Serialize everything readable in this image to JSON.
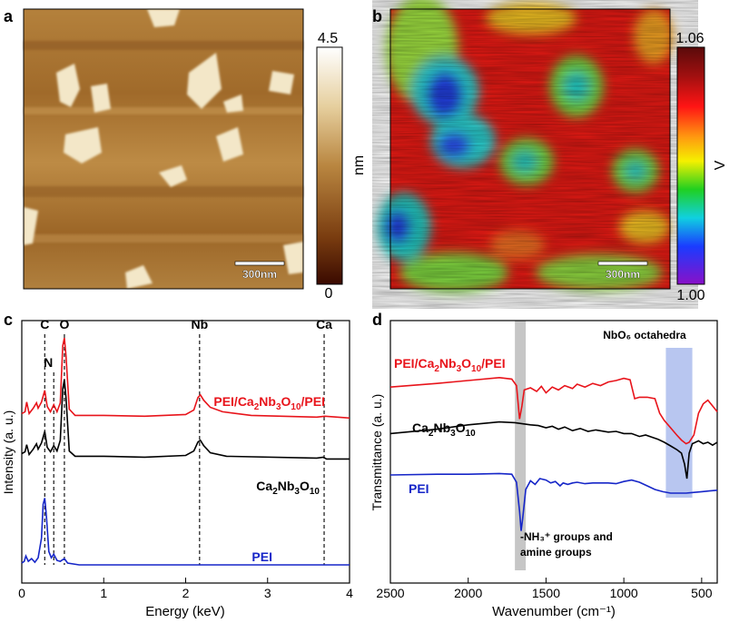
{
  "panels": {
    "a": {
      "letter": "a",
      "scalebar": "300nm",
      "colorbar_max": "4.5",
      "colorbar_min": "0",
      "colorbar_unit": "nm"
    },
    "b": {
      "letter": "b",
      "scalebar": "300nm",
      "colorbar_max": "1.06",
      "colorbar_min": "1.00",
      "colorbar_unit": "V"
    },
    "c": {
      "letter": "c"
    },
    "d": {
      "letter": "d"
    }
  },
  "chart_data": [
    {
      "type": "line",
      "panel": "c",
      "xlabel": "Energy (keV)",
      "ylabel": "Intensity (a. u.)",
      "xlim": [
        0,
        4
      ],
      "x_ticks": [
        "0",
        "1",
        "2",
        "3",
        "4"
      ],
      "element_markers": [
        {
          "label": "C",
          "x": 0.28
        },
        {
          "label": "N",
          "x": 0.39
        },
        {
          "label": "O",
          "x": 0.52
        },
        {
          "label": "Nb",
          "x": 2.17
        },
        {
          "label": "Ca",
          "x": 3.69
        }
      ],
      "series": [
        {
          "name": "PEI/Ca2Nb3O10/PEI",
          "color": "#e8141b",
          "points": [
            [
              0,
              0.7
            ],
            [
              0.04,
              0.72
            ],
            [
              0.06,
              0.83
            ],
            [
              0.09,
              0.7
            ],
            [
              0.14,
              0.76
            ],
            [
              0.18,
              0.82
            ],
            [
              0.2,
              0.76
            ],
            [
              0.24,
              0.83
            ],
            [
              0.28,
              0.96
            ],
            [
              0.31,
              0.78
            ],
            [
              0.35,
              0.72
            ],
            [
              0.39,
              0.8
            ],
            [
              0.43,
              0.72
            ],
            [
              0.47,
              0.82
            ],
            [
              0.5,
              1.46
            ],
            [
              0.52,
              1.55
            ],
            [
              0.54,
              1.35
            ],
            [
              0.58,
              0.75
            ],
            [
              0.65,
              0.68
            ],
            [
              1.0,
              0.68
            ],
            [
              1.5,
              0.67
            ],
            [
              2.0,
              0.69
            ],
            [
              2.1,
              0.74
            ],
            [
              2.15,
              0.88
            ],
            [
              2.18,
              0.91
            ],
            [
              2.22,
              0.85
            ],
            [
              2.3,
              0.77
            ],
            [
              2.45,
              0.72
            ],
            [
              2.8,
              0.68
            ],
            [
              3.6,
              0.66
            ],
            [
              3.7,
              0.67
            ],
            [
              4.0,
              0.65
            ]
          ]
        },
        {
          "name": "Ca2Nb3O10",
          "color": "#000000",
          "points": [
            [
              0,
              0.25
            ],
            [
              0.04,
              0.27
            ],
            [
              0.06,
              0.35
            ],
            [
              0.09,
              0.24
            ],
            [
              0.14,
              0.3
            ],
            [
              0.18,
              0.36
            ],
            [
              0.2,
              0.3
            ],
            [
              0.24,
              0.37
            ],
            [
              0.28,
              0.5
            ],
            [
              0.31,
              0.32
            ],
            [
              0.35,
              0.27
            ],
            [
              0.39,
              0.34
            ],
            [
              0.43,
              0.28
            ],
            [
              0.47,
              0.4
            ],
            [
              0.5,
              0.98
            ],
            [
              0.52,
              1.08
            ],
            [
              0.54,
              0.88
            ],
            [
              0.58,
              0.28
            ],
            [
              0.65,
              0.22
            ],
            [
              1.0,
              0.22
            ],
            [
              1.5,
              0.21
            ],
            [
              2.0,
              0.23
            ],
            [
              2.1,
              0.28
            ],
            [
              2.15,
              0.38
            ],
            [
              2.18,
              0.4
            ],
            [
              2.22,
              0.34
            ],
            [
              2.3,
              0.26
            ],
            [
              2.5,
              0.22
            ],
            [
              3.6,
              0.2
            ],
            [
              3.68,
              0.21
            ],
            [
              3.72,
              0.19
            ],
            [
              4.0,
              0.19
            ]
          ]
        },
        {
          "name": "PEI",
          "color": "#1626c8",
          "points": [
            [
              0,
              -0.98
            ],
            [
              0.03,
              -0.96
            ],
            [
              0.05,
              -0.9
            ],
            [
              0.08,
              -0.96
            ],
            [
              0.12,
              -0.93
            ],
            [
              0.16,
              -0.97
            ],
            [
              0.2,
              -0.92
            ],
            [
              0.24,
              -0.7
            ],
            [
              0.26,
              -0.32
            ],
            [
              0.28,
              -0.25
            ],
            [
              0.3,
              -0.45
            ],
            [
              0.33,
              -0.85
            ],
            [
              0.36,
              -0.92
            ],
            [
              0.39,
              -0.88
            ],
            [
              0.43,
              -0.95
            ],
            [
              0.47,
              -0.96
            ],
            [
              0.52,
              -0.93
            ],
            [
              0.56,
              -0.98
            ],
            [
              0.7,
              -1.0
            ],
            [
              1.0,
              -1.0
            ],
            [
              2.0,
              -1.0
            ],
            [
              3.0,
              -1.0
            ],
            [
              4.0,
              -1.0
            ]
          ]
        }
      ]
    },
    {
      "type": "line",
      "panel": "d",
      "xlabel": "Wavenumber (cm⁻¹)",
      "ylabel": "Transmittance (a. u.)",
      "xlim": [
        2500,
        400
      ],
      "x_ticks": [
        "2500",
        "2000",
        "1500",
        "1000",
        "500"
      ],
      "highlight_bands": [
        {
          "from": 1700,
          "to": 1630,
          "color": "#c6c6c6"
        },
        {
          "from": 730,
          "to": 560,
          "color": "#b8c6f0"
        }
      ],
      "annotations": {
        "nbo6": "NbO₆ octahedra",
        "nh3_line1": "-NH₃⁺ groups and",
        "nh3_line2": "amine groups"
      },
      "series": [
        {
          "name": "PEI/Ca2Nb3O10/PEI",
          "color": "#e8141b",
          "points": [
            [
              2500,
              0.86
            ],
            [
              2200,
              0.91
            ],
            [
              2000,
              0.95
            ],
            [
              1800,
              0.99
            ],
            [
              1720,
              0.97
            ],
            [
              1690,
              0.88
            ],
            [
              1670,
              0.42
            ],
            [
              1655,
              0.6
            ],
            [
              1640,
              0.82
            ],
            [
              1600,
              0.85
            ],
            [
              1560,
              0.8
            ],
            [
              1530,
              0.87
            ],
            [
              1500,
              0.78
            ],
            [
              1460,
              0.86
            ],
            [
              1420,
              0.82
            ],
            [
              1380,
              0.88
            ],
            [
              1330,
              0.84
            ],
            [
              1300,
              0.9
            ],
            [
              1250,
              0.86
            ],
            [
              1200,
              0.91
            ],
            [
              1150,
              0.88
            ],
            [
              1100,
              0.93
            ],
            [
              1050,
              0.95
            ],
            [
              1000,
              0.98
            ],
            [
              960,
              0.96
            ],
            [
              930,
              0.7
            ],
            [
              900,
              0.72
            ],
            [
              850,
              0.72
            ],
            [
              800,
              0.7
            ],
            [
              770,
              0.5
            ],
            [
              740,
              0.4
            ],
            [
              700,
              0.3
            ],
            [
              660,
              0.2
            ],
            [
              630,
              0.13
            ],
            [
              600,
              0.08
            ],
            [
              580,
              0.1
            ],
            [
              550,
              0.2
            ],
            [
              520,
              0.5
            ],
            [
              490,
              0.63
            ],
            [
              460,
              0.68
            ],
            [
              430,
              0.6
            ],
            [
              400,
              0.52
            ]
          ]
        },
        {
          "name": "Ca2Nb3O10",
          "color": "#000000",
          "points": [
            [
              2500,
              0.22
            ],
            [
              2200,
              0.28
            ],
            [
              2000,
              0.34
            ],
            [
              1800,
              0.38
            ],
            [
              1700,
              0.37
            ],
            [
              1600,
              0.34
            ],
            [
              1550,
              0.33
            ],
            [
              1500,
              0.3
            ],
            [
              1460,
              0.32
            ],
            [
              1420,
              0.28
            ],
            [
              1380,
              0.31
            ],
            [
              1330,
              0.26
            ],
            [
              1280,
              0.29
            ],
            [
              1230,
              0.25
            ],
            [
              1180,
              0.27
            ],
            [
              1100,
              0.24
            ],
            [
              1050,
              0.25
            ],
            [
              1000,
              0.22
            ],
            [
              950,
              0.22
            ],
            [
              900,
              0.18
            ],
            [
              860,
              0.2
            ],
            [
              820,
              0.17
            ],
            [
              780,
              0.14
            ],
            [
              740,
              0.1
            ],
            [
              700,
              0.05
            ],
            [
              660,
              0.0
            ],
            [
              630,
              -0.05
            ],
            [
              610,
              -0.2
            ],
            [
              595,
              -0.4
            ],
            [
              580,
              -0.05
            ],
            [
              560,
              0.08
            ],
            [
              520,
              0.12
            ],
            [
              490,
              0.08
            ],
            [
              460,
              0.1
            ],
            [
              430,
              0.06
            ],
            [
              400,
              0.1
            ]
          ]
        },
        {
          "name": "PEI",
          "color": "#1626c8",
          "points": [
            [
              2500,
              -0.35
            ],
            [
              2200,
              -0.34
            ],
            [
              2000,
              -0.34
            ],
            [
              1800,
              -0.33
            ],
            [
              1720,
              -0.34
            ],
            [
              1690,
              -0.45
            ],
            [
              1670,
              -0.85
            ],
            [
              1660,
              -1.12
            ],
            [
              1650,
              -0.95
            ],
            [
              1630,
              -0.55
            ],
            [
              1600,
              -0.43
            ],
            [
              1570,
              -0.48
            ],
            [
              1540,
              -0.4
            ],
            [
              1500,
              -0.42
            ],
            [
              1470,
              -0.46
            ],
            [
              1440,
              -0.44
            ],
            [
              1410,
              -0.5
            ],
            [
              1390,
              -0.46
            ],
            [
              1360,
              -0.48
            ],
            [
              1330,
              -0.46
            ],
            [
              1300,
              -0.45
            ],
            [
              1250,
              -0.47
            ],
            [
              1200,
              -0.46
            ],
            [
              1100,
              -0.46
            ],
            [
              1050,
              -0.47
            ],
            [
              1000,
              -0.44
            ],
            [
              950,
              -0.42
            ],
            [
              900,
              -0.45
            ],
            [
              850,
              -0.5
            ],
            [
              800,
              -0.55
            ],
            [
              750,
              -0.58
            ],
            [
              700,
              -0.6
            ],
            [
              650,
              -0.6
            ],
            [
              600,
              -0.6
            ],
            [
              550,
              -0.59
            ],
            [
              500,
              -0.58
            ],
            [
              450,
              -0.57
            ],
            [
              400,
              -0.56
            ]
          ]
        }
      ]
    }
  ]
}
